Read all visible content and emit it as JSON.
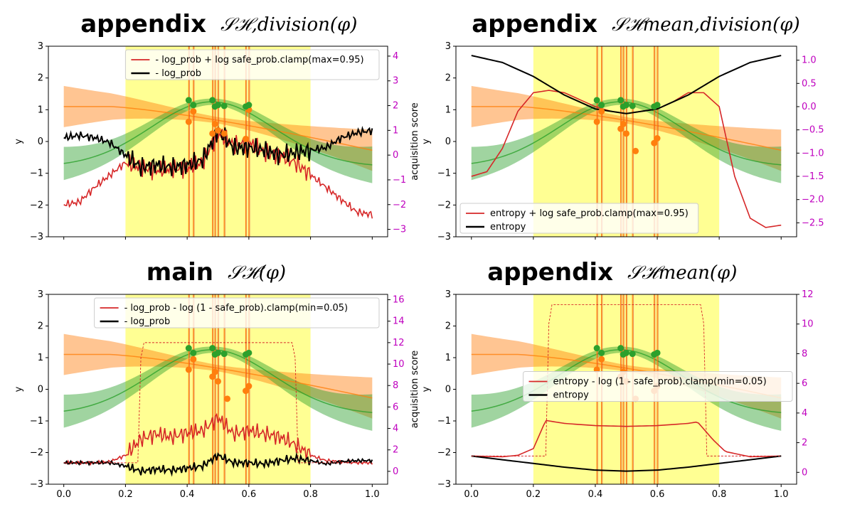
{
  "chart_data": [
    {
      "type": "line",
      "title": "appendix",
      "title_math": "𝒮ℋ,division(φ)",
      "xlabel": "",
      "ylabel": "y",
      "y2label": "acquisition score",
      "xlim": [
        -0.05,
        1.05
      ],
      "ylim": [
        -3,
        3
      ],
      "y2lim": [
        -3.3,
        4.4
      ],
      "xticks": [],
      "yticks": [
        "−3",
        "−2",
        "−1",
        "0",
        "1",
        "2",
        "3"
      ],
      "y2ticks": [
        "−3",
        "−2",
        "−1",
        "0",
        "1",
        "2",
        "3",
        "4"
      ],
      "safe_region": [
        0.2,
        0.8
      ],
      "vlines": [
        0.405,
        0.42,
        0.482,
        0.49,
        0.5,
        0.52,
        0.59,
        0.6
      ],
      "obs_green": [
        [
          0.405,
          1.3
        ],
        [
          0.42,
          1.15
        ],
        [
          0.482,
          1.3
        ],
        [
          0.49,
          1.1
        ],
        [
          0.5,
          1.15
        ],
        [
          0.52,
          1.12
        ],
        [
          0.59,
          1.1
        ],
        [
          0.6,
          1.15
        ]
      ],
      "obs_orange": [
        [
          0.405,
          0.62
        ],
        [
          0.42,
          0.95
        ],
        [
          0.482,
          0.25
        ],
        [
          0.49,
          0.55
        ],
        [
          0.5,
          0.35
        ],
        [
          0.52,
          0.25
        ],
        [
          0.59,
          0.08
        ],
        [
          0.6,
          1.0
        ]
      ],
      "legend": [
        "- log_prob + log safe_prob.clamp(max=0.95)",
        "- log_prob"
      ],
      "legend_position": "upper right",
      "series": [
        {
          "name": "- log_prob + log safe_prob.clamp(max=0.95)",
          "color": "#d62728",
          "x": [
            0.0,
            0.05,
            0.1,
            0.15,
            0.2,
            0.25,
            0.3,
            0.35,
            0.4,
            0.45,
            0.5,
            0.55,
            0.6,
            0.65,
            0.7,
            0.75,
            0.8,
            0.85,
            0.9,
            0.95,
            1.0
          ],
          "values": [
            -2.0,
            -1.9,
            -1.3,
            -0.8,
            -0.3,
            -0.5,
            -0.6,
            -0.55,
            -0.5,
            -0.3,
            0.9,
            0.4,
            0.5,
            0.1,
            0.0,
            -0.3,
            -0.8,
            -1.3,
            -1.8,
            -2.3,
            -2.4
          ]
        },
        {
          "name": "- log_prob",
          "color": "#000000",
          "x": [
            0.0,
            0.05,
            0.1,
            0.15,
            0.2,
            0.25,
            0.3,
            0.35,
            0.4,
            0.45,
            0.5,
            0.55,
            0.6,
            0.65,
            0.7,
            0.75,
            0.8,
            0.85,
            0.9,
            0.95,
            1.0
          ],
          "values": [
            0.7,
            0.8,
            0.7,
            0.5,
            0.0,
            -0.5,
            -0.4,
            -0.5,
            -0.4,
            -0.2,
            1.0,
            0.3,
            0.3,
            0.2,
            0.0,
            0.1,
            0.2,
            0.3,
            0.7,
            0.9,
            1.0
          ]
        }
      ]
    },
    {
      "type": "line",
      "title": "appendix",
      "title_math": "𝒮ℋmean,division(φ)",
      "xlabel": "",
      "ylabel": "y",
      "y2label": "",
      "xlim": [
        -0.05,
        1.05
      ],
      "ylim": [
        -3,
        3
      ],
      "y2lim": [
        -2.8,
        1.3
      ],
      "xticks": [],
      "yticks": [
        "−3",
        "−2",
        "−1",
        "0",
        "1",
        "2",
        "3"
      ],
      "y2ticks": [
        "−2.5",
        "−2.0",
        "−1.5",
        "−1.0",
        "−0.5",
        "0.0",
        "0.5",
        "1.0"
      ],
      "safe_region": [
        0.2,
        0.8
      ],
      "vlines": [
        0.405,
        0.42,
        0.482,
        0.49,
        0.5,
        0.52,
        0.59,
        0.6
      ],
      "obs_green": [
        [
          0.405,
          1.3
        ],
        [
          0.42,
          1.15
        ],
        [
          0.482,
          1.3
        ],
        [
          0.49,
          1.1
        ],
        [
          0.5,
          1.15
        ],
        [
          0.52,
          1.12
        ],
        [
          0.59,
          1.1
        ],
        [
          0.6,
          1.15
        ]
      ],
      "obs_orange": [
        [
          0.405,
          0.62
        ],
        [
          0.42,
          0.95
        ],
        [
          0.482,
          0.4
        ],
        [
          0.49,
          0.55
        ],
        [
          0.5,
          0.25
        ],
        [
          0.53,
          -0.3
        ],
        [
          0.59,
          -0.05
        ],
        [
          0.6,
          0.1
        ]
      ],
      "legend": [
        "entropy + log safe_prob.clamp(max=0.95)",
        "entropy"
      ],
      "legend_position": "lower left",
      "series": [
        {
          "name": "entropy + log safe_prob.clamp(max=0.95)",
          "color": "#d62728",
          "x": [
            0.0,
            0.05,
            0.1,
            0.15,
            0.2,
            0.25,
            0.3,
            0.35,
            0.4,
            0.45,
            0.5,
            0.55,
            0.6,
            0.65,
            0.7,
            0.75,
            0.8,
            0.85,
            0.9,
            0.95,
            1.0
          ],
          "values": [
            -1.5,
            -1.4,
            -0.9,
            -0.1,
            0.3,
            0.35,
            0.3,
            0.15,
            0.0,
            -0.1,
            -0.15,
            -0.1,
            -0.05,
            0.1,
            0.3,
            0.3,
            0.0,
            -1.5,
            -2.4,
            -2.6,
            -2.55
          ]
        },
        {
          "name": "entropy",
          "color": "#000000",
          "x": [
            0.0,
            0.1,
            0.2,
            0.3,
            0.4,
            0.5,
            0.6,
            0.7,
            0.8,
            0.9,
            1.0
          ],
          "values": [
            1.1,
            0.95,
            0.65,
            0.25,
            -0.05,
            -0.15,
            -0.05,
            0.25,
            0.65,
            0.95,
            1.1
          ]
        }
      ]
    },
    {
      "type": "line",
      "title": "main",
      "title_math": "𝒮ℋ(φ)",
      "xlabel": "",
      "ylabel": "y",
      "y2label": "acquisition score",
      "xlim": [
        -0.05,
        1.05
      ],
      "ylim": [
        -3,
        3
      ],
      "y2lim": [
        -1.2,
        16.5
      ],
      "xticks": [
        "0.0",
        "0.2",
        "0.4",
        "0.6",
        "0.8",
        "1.0"
      ],
      "yticks": [
        "−3",
        "−2",
        "−1",
        "0",
        "1",
        "2",
        "3"
      ],
      "y2ticks": [
        "0",
        "2",
        "4",
        "6",
        "8",
        "10",
        "12",
        "14",
        "16"
      ],
      "safe_region": [
        0.2,
        0.8
      ],
      "vlines": [
        0.405,
        0.42,
        0.482,
        0.49,
        0.5,
        0.52,
        0.59,
        0.6
      ],
      "obs_green": [
        [
          0.405,
          1.3
        ],
        [
          0.42,
          1.15
        ],
        [
          0.482,
          1.3
        ],
        [
          0.49,
          1.1
        ],
        [
          0.5,
          1.15
        ],
        [
          0.52,
          1.12
        ],
        [
          0.59,
          1.1
        ],
        [
          0.6,
          1.15
        ]
      ],
      "obs_orange": [
        [
          0.405,
          0.62
        ],
        [
          0.42,
          0.95
        ],
        [
          0.482,
          0.4
        ],
        [
          0.49,
          0.55
        ],
        [
          0.5,
          0.25
        ],
        [
          0.53,
          -0.3
        ],
        [
          0.59,
          -0.05
        ],
        [
          0.6,
          0.1
        ]
      ],
      "legend": [
        "- log_prob - log (1 - safe_prob).clamp(min=0.05)",
        "- log_prob"
      ],
      "legend_position": "upper right",
      "series": [
        {
          "name": "- log_prob - log (1 - safe_prob).clamp(min=0.05)",
          "color": "#d62728",
          "x": [
            0.0,
            0.05,
            0.1,
            0.15,
            0.2,
            0.25,
            0.3,
            0.35,
            0.4,
            0.45,
            0.5,
            0.55,
            0.6,
            0.65,
            0.7,
            0.75,
            0.8,
            0.85,
            0.9,
            0.95,
            1.0
          ],
          "values": [
            0.8,
            0.8,
            0.8,
            0.9,
            1.5,
            3.0,
            3.5,
            3.2,
            3.6,
            3.8,
            5.0,
            3.5,
            3.8,
            3.5,
            3.2,
            2.5,
            1.5,
            1.0,
            0.9,
            0.8,
            0.8
          ]
        },
        {
          "name": "- log_prob",
          "color": "#000000",
          "x": [
            0.0,
            0.05,
            0.1,
            0.15,
            0.2,
            0.25,
            0.3,
            0.35,
            0.4,
            0.45,
            0.5,
            0.55,
            0.6,
            0.65,
            0.7,
            0.75,
            0.8,
            0.85,
            0.9,
            0.95,
            1.0
          ],
          "values": [
            0.8,
            0.8,
            0.8,
            0.8,
            0.5,
            0.0,
            0.2,
            0.1,
            0.3,
            0.5,
            1.5,
            0.8,
            0.8,
            0.7,
            1.0,
            1.2,
            1.0,
            0.7,
            0.9,
            1.0,
            1.0
          ]
        }
      ]
    },
    {
      "type": "line",
      "title": "appendix",
      "title_math": "𝒮ℋmean(φ)",
      "xlabel": "",
      "ylabel": "y",
      "y2label": "",
      "xlim": [
        -0.05,
        1.05
      ],
      "ylim": [
        -3,
        3
      ],
      "y2lim": [
        -0.8,
        12.0
      ],
      "xticks": [
        "0.0",
        "0.2",
        "0.4",
        "0.6",
        "0.8",
        "1.0"
      ],
      "yticks": [
        "−3",
        "−2",
        "−1",
        "0",
        "1",
        "2",
        "3"
      ],
      "y2ticks": [
        "0",
        "2",
        "4",
        "6",
        "8",
        "10",
        "12"
      ],
      "safe_region": [
        0.2,
        0.8
      ],
      "vlines": [
        0.405,
        0.42,
        0.482,
        0.49,
        0.5,
        0.52,
        0.59,
        0.6
      ],
      "obs_green": [
        [
          0.405,
          1.3
        ],
        [
          0.42,
          1.15
        ],
        [
          0.482,
          1.3
        ],
        [
          0.49,
          1.1
        ],
        [
          0.5,
          1.15
        ],
        [
          0.52,
          1.12
        ],
        [
          0.59,
          1.1
        ],
        [
          0.6,
          1.15
        ]
      ],
      "obs_orange": [
        [
          0.405,
          0.62
        ],
        [
          0.42,
          0.95
        ],
        [
          0.482,
          0.4
        ],
        [
          0.49,
          0.55
        ],
        [
          0.5,
          0.25
        ],
        [
          0.53,
          -0.3
        ],
        [
          0.59,
          -0.05
        ],
        [
          0.6,
          0.1
        ]
      ],
      "legend": [
        "entropy - log (1 - safe_prob).clamp(min=0.05)",
        "entropy"
      ],
      "legend_position": "center right",
      "series": [
        {
          "name": "entropy - log (1 - safe_prob).clamp(min=0.05)",
          "color": "#d62728",
          "x": [
            0.0,
            0.1,
            0.15,
            0.2,
            0.24,
            0.3,
            0.4,
            0.5,
            0.6,
            0.7,
            0.73,
            0.78,
            0.82,
            0.9,
            1.0
          ],
          "values": [
            1.1,
            1.05,
            1.15,
            1.6,
            3.5,
            3.3,
            3.15,
            3.1,
            3.15,
            3.3,
            3.4,
            2.2,
            1.4,
            1.05,
            1.1
          ]
        },
        {
          "name": "entropy",
          "color": "#000000",
          "x": [
            0.0,
            0.1,
            0.2,
            0.3,
            0.4,
            0.5,
            0.6,
            0.7,
            0.8,
            0.9,
            1.0
          ],
          "values": [
            1.1,
            0.85,
            0.6,
            0.35,
            0.15,
            0.08,
            0.15,
            0.35,
            0.6,
            0.85,
            1.1
          ]
        }
      ]
    }
  ]
}
